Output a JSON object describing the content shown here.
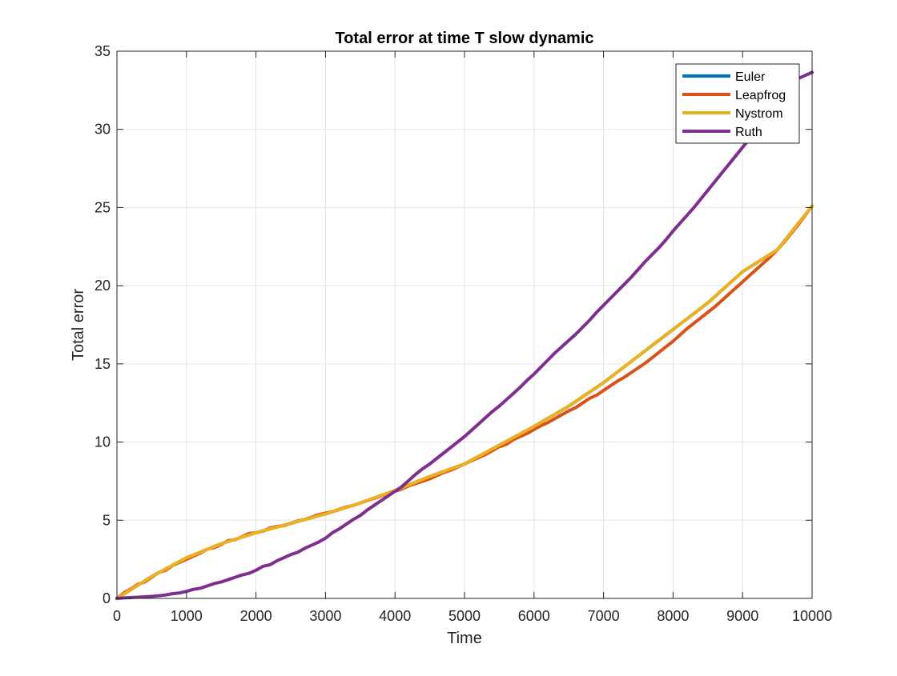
{
  "chart_data": {
    "type": "line",
    "title": "Total error at time T slow dynamic",
    "xlabel": "Time",
    "ylabel": "Total error",
    "xlim": [
      0,
      10000
    ],
    "ylim": [
      0,
      35
    ],
    "xticks": [
      0,
      1000,
      2000,
      3000,
      4000,
      5000,
      6000,
      7000,
      8000,
      9000,
      10000
    ],
    "yticks": [
      0,
      5,
      10,
      15,
      20,
      25,
      30,
      35
    ],
    "grid": true,
    "legend_position": "top-right",
    "series": [
      {
        "name": "Euler",
        "color": "#0072BD",
        "x": [
          0,
          500,
          1000,
          1500,
          2000,
          2500,
          3000,
          3500,
          4000,
          4500,
          5000,
          5500,
          6000,
          6500,
          7000,
          7500,
          8000,
          8500,
          9000,
          9500,
          10000
        ],
        "y": [
          0,
          1.4,
          2.6,
          3.5,
          4.2,
          4.8,
          5.4,
          6.1,
          6.9,
          7.8,
          8.6,
          9.8,
          11.0,
          12.3,
          13.8,
          15.5,
          17.2,
          18.9,
          20.9,
          22.3,
          25.1
        ]
      },
      {
        "name": "Leapfrog",
        "color": "#D95319",
        "x": [
          0,
          100,
          200,
          300,
          400,
          500,
          600,
          700,
          800,
          900,
          1000,
          1100,
          1200,
          1300,
          1400,
          1500,
          1600,
          1700,
          1800,
          1900,
          2000,
          2100,
          2200,
          2300,
          2400,
          2500,
          2600,
          2700,
          2800,
          2900,
          3000,
          3100,
          3200,
          3300,
          3400,
          3500,
          3600,
          3700,
          3800,
          3900,
          4000,
          4100,
          4200,
          4300,
          4400,
          4500,
          4600,
          4700,
          4800,
          4900,
          5000,
          5100,
          5200,
          5300,
          5400,
          5500,
          5600,
          5700,
          5800,
          5900,
          6000,
          6100,
          6200,
          6300,
          6400,
          6500,
          6600,
          6700,
          6800,
          6900,
          7000,
          7100,
          7200,
          7300,
          7400,
          7500,
          7600,
          7700,
          7800,
          7900,
          8000,
          8100,
          8200,
          8300,
          8400,
          8500,
          8600,
          8700,
          8800,
          8900,
          9000,
          9100,
          9200,
          9300,
          9400,
          9500,
          9600,
          9700,
          9800,
          9900,
          10000
        ],
        "y": [
          0,
          0.35,
          0.6,
          0.9,
          1.05,
          1.35,
          1.65,
          1.8,
          2.1,
          2.3,
          2.5,
          2.7,
          2.9,
          3.15,
          3.25,
          3.45,
          3.7,
          3.75,
          3.95,
          4.15,
          4.2,
          4.3,
          4.5,
          4.6,
          4.65,
          4.8,
          4.95,
          5.05,
          5.2,
          5.35,
          5.45,
          5.55,
          5.7,
          5.85,
          5.95,
          6.1,
          6.25,
          6.4,
          6.55,
          6.7,
          6.85,
          7.0,
          7.2,
          7.35,
          7.5,
          7.65,
          7.85,
          8.05,
          8.2,
          8.4,
          8.6,
          8.8,
          9.0,
          9.2,
          9.45,
          9.7,
          9.85,
          10.15,
          10.35,
          10.55,
          10.8,
          11.05,
          11.25,
          11.5,
          11.75,
          12.0,
          12.2,
          12.5,
          12.8,
          13.0,
          13.3,
          13.6,
          13.9,
          14.15,
          14.45,
          14.75,
          15.05,
          15.4,
          15.75,
          16.1,
          16.45,
          16.85,
          17.25,
          17.6,
          17.95,
          18.3,
          18.65,
          19.05,
          19.45,
          19.85,
          20.25,
          20.65,
          21.05,
          21.45,
          21.85,
          22.3,
          22.8,
          23.35,
          23.9,
          24.5,
          25.1
        ]
      },
      {
        "name": "Nystrom",
        "color": "#EDB120",
        "x": [
          0,
          500,
          1000,
          1500,
          2000,
          2500,
          3000,
          3500,
          4000,
          4500,
          5000,
          5500,
          6000,
          6500,
          7000,
          7500,
          8000,
          8500,
          9000,
          9500,
          10000
        ],
        "y": [
          0,
          1.4,
          2.6,
          3.5,
          4.2,
          4.8,
          5.4,
          6.1,
          6.9,
          7.8,
          8.6,
          9.8,
          11.0,
          12.3,
          13.8,
          15.5,
          17.2,
          18.9,
          20.9,
          22.3,
          25.1
        ]
      },
      {
        "name": "Ruth",
        "color": "#7E2F8E",
        "x": [
          0,
          100,
          200,
          300,
          400,
          500,
          600,
          700,
          800,
          900,
          1000,
          1100,
          1200,
          1300,
          1400,
          1500,
          1600,
          1700,
          1800,
          1900,
          2000,
          2100,
          2200,
          2300,
          2400,
          2500,
          2600,
          2700,
          2800,
          2900,
          3000,
          3100,
          3200,
          3300,
          3400,
          3500,
          3600,
          3700,
          3800,
          3900,
          4000,
          4100,
          4200,
          4300,
          4400,
          4500,
          4600,
          4700,
          4800,
          4900,
          5000,
          5100,
          5200,
          5300,
          5400,
          5500,
          5600,
          5700,
          5800,
          5900,
          6000,
          6100,
          6200,
          6300,
          6400,
          6500,
          6600,
          6700,
          6800,
          6900,
          7000,
          7100,
          7200,
          7300,
          7400,
          7500,
          7600,
          7700,
          7800,
          7900,
          8000,
          8100,
          8200,
          8300,
          8400,
          8500,
          8600,
          8700,
          8800,
          8900,
          9000,
          9100,
          9200,
          9300,
          9400,
          9500,
          9600,
          9700,
          9800,
          9900,
          10000
        ],
        "y": [
          0,
          0.03,
          0.05,
          0.08,
          0.1,
          0.13,
          0.17,
          0.22,
          0.3,
          0.35,
          0.45,
          0.58,
          0.65,
          0.8,
          0.95,
          1.05,
          1.2,
          1.35,
          1.5,
          1.6,
          1.8,
          2.05,
          2.15,
          2.4,
          2.6,
          2.8,
          2.95,
          3.2,
          3.4,
          3.6,
          3.85,
          4.2,
          4.45,
          4.75,
          5.05,
          5.3,
          5.65,
          5.95,
          6.25,
          6.55,
          6.85,
          7.15,
          7.55,
          7.95,
          8.3,
          8.6,
          8.95,
          9.3,
          9.65,
          10.0,
          10.35,
          10.75,
          11.15,
          11.55,
          11.95,
          12.3,
          12.7,
          13.1,
          13.5,
          13.95,
          14.35,
          14.8,
          15.25,
          15.7,
          16.1,
          16.5,
          16.9,
          17.35,
          17.8,
          18.3,
          18.75,
          19.2,
          19.65,
          20.1,
          20.55,
          21.05,
          21.55,
          22.0,
          22.45,
          22.95,
          23.5,
          24.0,
          24.5,
          25.0,
          25.55,
          26.1,
          26.65,
          27.2,
          27.75,
          28.3,
          28.85,
          29.4,
          29.95,
          30.5,
          31.05,
          31.6,
          32.2,
          32.75,
          33.25,
          33.45,
          33.65
        ]
      }
    ]
  }
}
